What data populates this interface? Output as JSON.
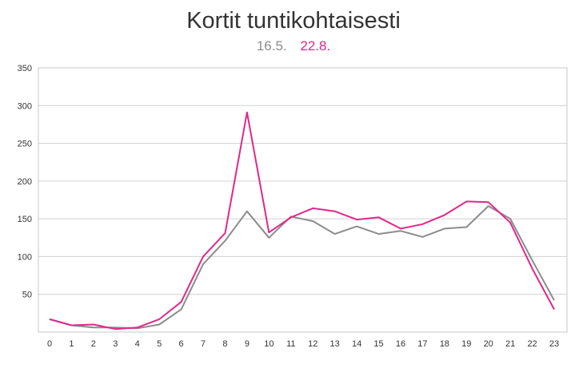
{
  "chart_data": {
    "type": "line",
    "title": "Kortit tuntikohtaisesti",
    "categories": [
      "0",
      "1",
      "2",
      "3",
      "4",
      "5",
      "6",
      "7",
      "8",
      "9",
      "10",
      "11",
      "12",
      "13",
      "14",
      "15",
      "16",
      "17",
      "18",
      "19",
      "20",
      "21",
      "22",
      "23"
    ],
    "series": [
      {
        "name": "16.5.",
        "color": "#8c8c8c",
        "values": [
          17,
          9,
          6,
          6,
          5,
          10,
          30,
          90,
          121,
          160,
          125,
          153,
          147,
          130,
          140,
          130,
          134,
          126,
          137,
          139,
          167,
          150,
          95,
          42
        ]
      },
      {
        "name": "22.8.",
        "color": "#e0288a",
        "values": [
          17,
          9,
          10,
          4,
          6,
          17,
          40,
          100,
          131,
          291,
          132,
          152,
          164,
          160,
          149,
          152,
          137,
          143,
          155,
          173,
          172,
          145,
          84,
          30
        ]
      }
    ],
    "yticks": [
      50,
      100,
      150,
      200,
      250,
      300,
      350
    ],
    "ylim": [
      0,
      350
    ],
    "grid": true,
    "legend_position": "top-center"
  }
}
